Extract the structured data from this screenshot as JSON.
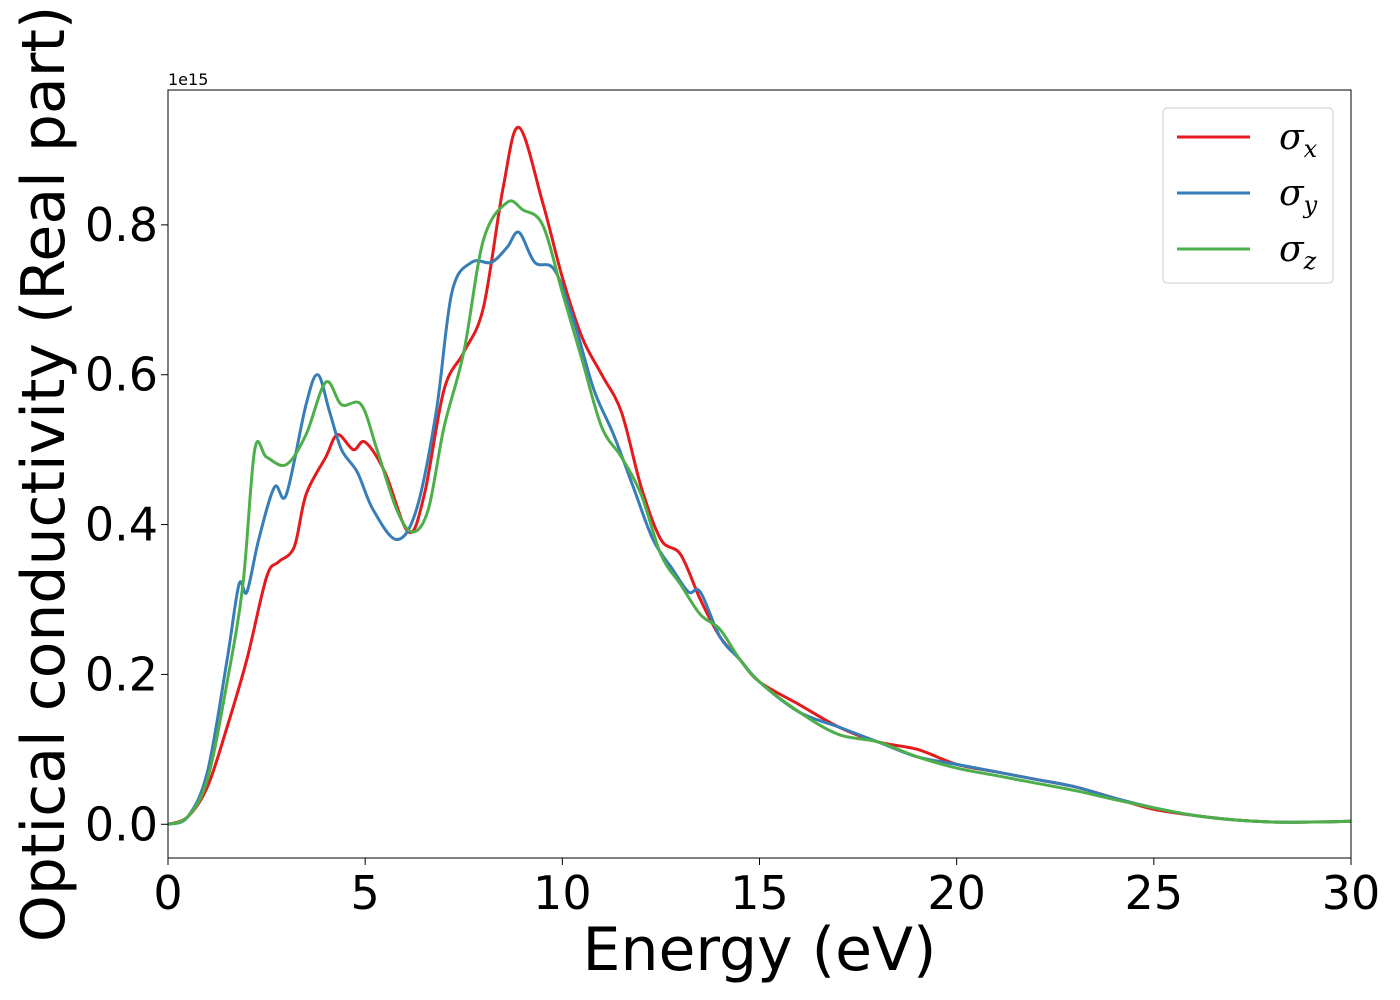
{
  "chart_data": {
    "type": "line",
    "title": "",
    "xlabel": "Energy (eV)",
    "ylabel": "Optical conductivity (Real part)",
    "y_offset_label": "1e15",
    "xlim": [
      0,
      30
    ],
    "ylim": [
      -0.045,
      0.98
    ],
    "xticks": [
      0,
      5,
      10,
      15,
      20,
      25,
      30
    ],
    "xtick_labels": [
      "0",
      "5",
      "10",
      "15",
      "20",
      "25",
      "30"
    ],
    "yticks": [
      0.0,
      0.2,
      0.4,
      0.6,
      0.8
    ],
    "ytick_labels": [
      "0.0",
      "0.2",
      "0.4",
      "0.6",
      "0.8"
    ],
    "grid": false,
    "legend_position": "top-right",
    "series": [
      {
        "name": "σx",
        "symbol": "σ",
        "subscript": "x",
        "color": "#e41a1c",
        "x": [
          0,
          0.5,
          1.0,
          1.5,
          2.0,
          2.5,
          2.8,
          3.2,
          3.5,
          4.0,
          4.3,
          4.7,
          5.0,
          5.5,
          6.1,
          6.5,
          7.0,
          7.5,
          8.0,
          8.5,
          8.9,
          9.5,
          10.0,
          10.5,
          11.0,
          11.5,
          12.0,
          12.5,
          13.0,
          13.5,
          14.0,
          14.5,
          15.0,
          16.0,
          17.0,
          18.0,
          19.0,
          20.0,
          21.0,
          22.0,
          23.0,
          24.0,
          25.0,
          26.0,
          27.0,
          28.0,
          29.0,
          30.0
        ],
        "values": [
          0.0,
          0.01,
          0.05,
          0.13,
          0.22,
          0.33,
          0.35,
          0.37,
          0.44,
          0.49,
          0.52,
          0.5,
          0.51,
          0.47,
          0.39,
          0.44,
          0.58,
          0.63,
          0.69,
          0.85,
          0.93,
          0.83,
          0.73,
          0.65,
          0.6,
          0.55,
          0.45,
          0.38,
          0.36,
          0.3,
          0.25,
          0.22,
          0.19,
          0.16,
          0.13,
          0.11,
          0.1,
          0.08,
          0.07,
          0.06,
          0.05,
          0.035,
          0.02,
          0.012,
          0.006,
          0.003,
          0.003,
          0.004
        ]
      },
      {
        "name": "σy",
        "symbol": "σ",
        "subscript": "y",
        "color": "#377eb8",
        "x": [
          0,
          0.5,
          1.0,
          1.5,
          1.8,
          2.0,
          2.3,
          2.7,
          3.0,
          3.5,
          3.8,
          4.1,
          4.4,
          4.8,
          5.2,
          5.8,
          6.3,
          6.8,
          7.2,
          7.7,
          8.2,
          8.6,
          8.9,
          9.3,
          9.8,
          10.3,
          10.8,
          11.3,
          11.8,
          12.3,
          12.8,
          13.2,
          13.5,
          14.0,
          14.5,
          15.0,
          16.0,
          17.0,
          18.0,
          19.0,
          20.0,
          21.0,
          22.0,
          23.0,
          24.0,
          25.0,
          26.0,
          27.0,
          28.0,
          29.0,
          30.0
        ],
        "values": [
          0.0,
          0.01,
          0.07,
          0.22,
          0.32,
          0.31,
          0.38,
          0.45,
          0.44,
          0.56,
          0.6,
          0.55,
          0.5,
          0.47,
          0.42,
          0.38,
          0.42,
          0.55,
          0.71,
          0.75,
          0.75,
          0.77,
          0.79,
          0.75,
          0.74,
          0.67,
          0.58,
          0.52,
          0.45,
          0.38,
          0.34,
          0.31,
          0.31,
          0.25,
          0.22,
          0.19,
          0.15,
          0.13,
          0.11,
          0.09,
          0.08,
          0.07,
          0.06,
          0.05,
          0.035,
          0.022,
          0.012,
          0.006,
          0.003,
          0.003,
          0.004
        ]
      },
      {
        "name": "σz",
        "symbol": "σ",
        "subscript": "z",
        "color": "#4daf4a",
        "x": [
          0,
          0.5,
          1.0,
          1.5,
          1.9,
          2.2,
          2.5,
          3.0,
          3.5,
          4.0,
          4.4,
          4.9,
          5.3,
          5.8,
          6.2,
          6.6,
          7.0,
          7.5,
          8.0,
          8.6,
          9.0,
          9.5,
          10.0,
          10.5,
          11.0,
          11.5,
          12.0,
          12.5,
          13.0,
          13.5,
          14.0,
          14.5,
          15.0,
          16.0,
          17.0,
          18.0,
          19.0,
          20.0,
          21.0,
          22.0,
          23.0,
          24.0,
          25.0,
          26.0,
          27.0,
          28.0,
          29.0,
          30.0
        ],
        "values": [
          0.0,
          0.01,
          0.06,
          0.19,
          0.32,
          0.5,
          0.49,
          0.48,
          0.52,
          0.59,
          0.56,
          0.56,
          0.5,
          0.42,
          0.39,
          0.42,
          0.53,
          0.63,
          0.78,
          0.83,
          0.82,
          0.8,
          0.71,
          0.62,
          0.53,
          0.49,
          0.44,
          0.36,
          0.32,
          0.28,
          0.26,
          0.22,
          0.19,
          0.15,
          0.12,
          0.11,
          0.09,
          0.075,
          0.065,
          0.055,
          0.045,
          0.033,
          0.022,
          0.012,
          0.006,
          0.003,
          0.003,
          0.004
        ]
      }
    ]
  }
}
